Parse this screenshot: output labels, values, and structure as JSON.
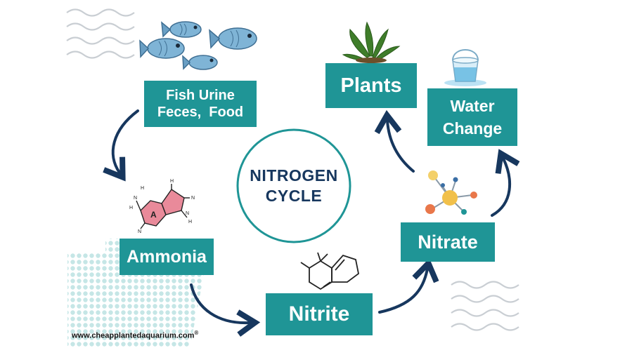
{
  "diagram": {
    "center_title": {
      "line1": "NITROGEN",
      "line2": "CYCLE"
    },
    "fish_box": {
      "line1": "Fish Urine",
      "line2": "Feces,  Food"
    },
    "plants_box": {
      "label": "Plants"
    },
    "water_box": {
      "line1": "Water",
      "line2": "Change"
    },
    "ammonia_box": {
      "label": "Ammonia"
    },
    "nitrite_box": {
      "label": "Nitrite"
    },
    "nitrate_box": {
      "label": "Nitrate"
    },
    "molecule_label": "A",
    "molecule_atoms": [
      "N",
      "N",
      "H",
      "H",
      "H",
      "N",
      "H",
      "N"
    ],
    "website": "www.cheapplantedaquarium.com",
    "registered_mark": "®"
  },
  "colors": {
    "box_teal": "#1f9596",
    "arrow_navy": "#17375e",
    "title_navy": "#17375e",
    "fish_blue": "#7fb4d6",
    "molecule_pink": "#e98a9a",
    "dots_teal": "#bfe3e3"
  },
  "icons": [
    "fish-icon",
    "plant-icon",
    "water-bucket-icon",
    "ammonia-molecule-icon",
    "nitrite-molecule-icon",
    "nitrate-molecule-icon"
  ]
}
